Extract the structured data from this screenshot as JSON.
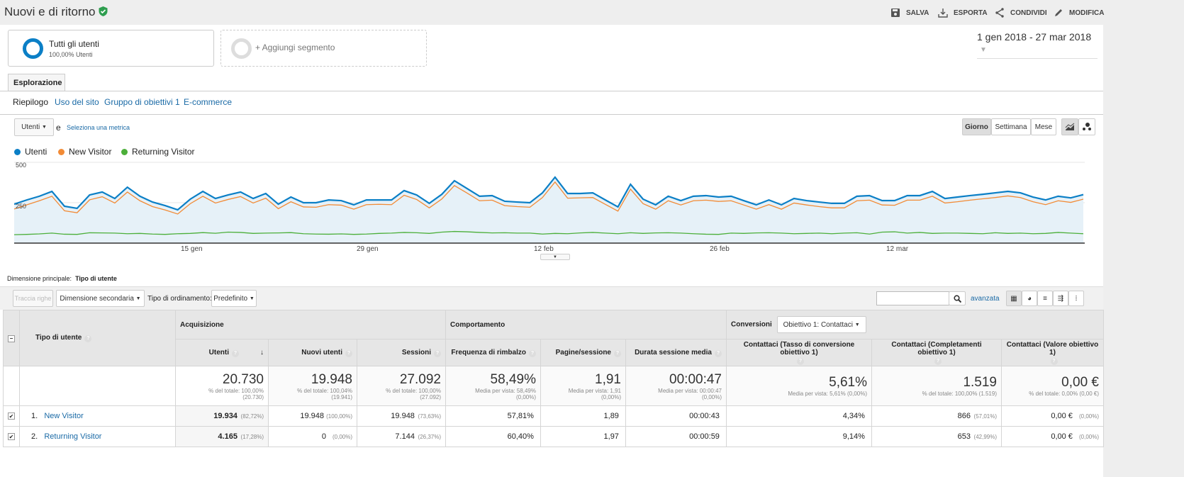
{
  "header": {
    "title": "Nuovi e di ritorno",
    "verified_icon": "shield-check-icon",
    "actions": [
      {
        "label": "SALVA",
        "icon": "save-icon"
      },
      {
        "label": "ESPORTA",
        "icon": "download-icon"
      },
      {
        "label": "CONDIVIDI",
        "icon": "share-icon"
      },
      {
        "label": "MODIFICA",
        "icon": "pencil-icon"
      }
    ]
  },
  "segments": {
    "active": {
      "name": "Tutti gli utenti",
      "detail": "100,00% Utenti"
    },
    "add": "+ Aggiungi segmento"
  },
  "date_range": "1 gen 2018 - 27 mar 2018",
  "tabs": {
    "main": "Esplorazione",
    "sub": [
      "Riepilogo",
      "Uso del sito",
      "Gruppo di obiettivi 1",
      "E-commerce"
    ]
  },
  "metric": {
    "selected": "Utenti",
    "joiner": "e",
    "select_link": "Seleziona una metrica"
  },
  "granularity": [
    "Giorno",
    "Settimana",
    "Mese"
  ],
  "colors": {
    "utenti": "#0b7fc6",
    "new": "#f28b36",
    "returning": "#4caf3a",
    "fill": "#e6f1f8"
  },
  "chart_data": {
    "type": "line",
    "legend_position": "top-left",
    "series": [
      {
        "name": "Utenti",
        "values": [
          241,
          267,
          290,
          320,
          228,
          215,
          298,
          316,
          276,
          346,
          290,
          254,
          232,
          206,
          272,
          320,
          276,
          298,
          316,
          276,
          307,
          241,
          285,
          250,
          250,
          267,
          263,
          237,
          267,
          267,
          267,
          325,
          298,
          246,
          302,
          386,
          338,
          290,
          294,
          259,
          254,
          250,
          311,
          408,
          307,
          307,
          311,
          267,
          224,
          364,
          272,
          237,
          290,
          263,
          290,
          294,
          285,
          290,
          263,
          237,
          267,
          237,
          276,
          263,
          254,
          246,
          246,
          290,
          294,
          263,
          263,
          294,
          294,
          320,
          276,
          285,
          294,
          302,
          311,
          320,
          311,
          285,
          267,
          290,
          280,
          300
        ]
      },
      {
        "name": "New Visitor",
        "values": [
          211,
          237,
          262,
          290,
          200,
          188,
          268,
          287,
          248,
          316,
          262,
          226,
          205,
          180,
          244,
          290,
          248,
          270,
          288,
          248,
          278,
          213,
          256,
          224,
          222,
          238,
          235,
          210,
          238,
          240,
          238,
          296,
          270,
          218,
          273,
          356,
          310,
          262,
          266,
          232,
          226,
          222,
          282,
          378,
          278,
          280,
          282,
          240,
          198,
          334,
          244,
          210,
          262,
          236,
          262,
          266,
          258,
          262,
          236,
          210,
          238,
          210,
          248,
          236,
          226,
          218,
          218,
          262,
          266,
          236,
          234,
          266,
          266,
          290,
          248,
          256,
          266,
          274,
          282,
          292,
          282,
          256,
          238,
          262,
          252,
          272
        ]
      },
      {
        "name": "Returning Visitor",
        "values": [
          52,
          54,
          57,
          62,
          55,
          54,
          64,
          63,
          62,
          58,
          60,
          56,
          54,
          58,
          60,
          65,
          61,
          68,
          66,
          60,
          62,
          63,
          65,
          58,
          56,
          55,
          57,
          54,
          56,
          60,
          62,
          66,
          64,
          60,
          68,
          72,
          70,
          66,
          63,
          64,
          62,
          62,
          56,
          60,
          58,
          63,
          66,
          62,
          58,
          64,
          60,
          63,
          64,
          62,
          58,
          55,
          54,
          62,
          60,
          63,
          64,
          62,
          58,
          60,
          62,
          58,
          62,
          64,
          56,
          68,
          70,
          62,
          66,
          60,
          62,
          62,
          60,
          58,
          64,
          60,
          62,
          58,
          60,
          66,
          62,
          58
        ]
      }
    ],
    "y_ticks": [
      "500",
      "250"
    ],
    "ylim": [
      0,
      500
    ],
    "x_ticks": [
      "15 gen",
      "29 gen",
      "12 feb",
      "26 feb",
      "12 mar"
    ],
    "grid": true
  },
  "dimension": {
    "label": "Dimensione principale:",
    "value": "Tipo di utente"
  },
  "toolbar": {
    "plot_rows": "Traccia righe",
    "secondary": "Dimensione secondaria",
    "sort_label": "Tipo di ordinamento:",
    "sort_value": "Predefinito",
    "advanced": "avanzata"
  },
  "table": {
    "dim_header": "Tipo di utente",
    "groups": {
      "acq": "Acquisizione",
      "beh": "Comportamento",
      "conv": "Conversioni",
      "goal": "Obiettivo 1: Contattaci"
    },
    "columns": [
      "Utenti",
      "Nuovi utenti",
      "Sessioni",
      "Frequenza di rimbalzo",
      "Pagine/sessione",
      "Durata sessione media",
      "Contattaci (Tasso di conversione obiettivo 1)",
      "Contattaci (Completamenti obiettivo 1)",
      "Contattaci (Valore obiettivo 1)"
    ],
    "totals": [
      {
        "v": "20.730",
        "s": "% del totale: 100,00% (20.730)"
      },
      {
        "v": "19.948",
        "s": "% del totale: 100,04% (19.941)"
      },
      {
        "v": "27.092",
        "s": "% del totale: 100,00% (27.092)"
      },
      {
        "v": "58,49%",
        "s": "Media per vista: 58,49% (0,00%)"
      },
      {
        "v": "1,91",
        "s": "Media per vista: 1,91 (0,00%)"
      },
      {
        "v": "00:00:47",
        "s": "Media per vista: 00:00:47 (0,00%)"
      },
      {
        "v": "5,61%",
        "s": "Media per vista: 5,61% (0,00%)"
      },
      {
        "v": "1.519",
        "s": "% del totale: 100,00% (1.519)"
      },
      {
        "v": "0,00 €",
        "s": "% del totale: 0,00% (0,00 €)"
      }
    ],
    "rows": [
      {
        "n": "1.",
        "name": "New Visitor",
        "cells": [
          [
            "19.934",
            "(82,72%)"
          ],
          [
            "19.948",
            "(100,00%)"
          ],
          [
            "19.948",
            "(73,63%)"
          ],
          [
            "57,81%",
            ""
          ],
          [
            "1,89",
            ""
          ],
          [
            "00:00:43",
            ""
          ],
          [
            "4,34%",
            ""
          ],
          [
            "866",
            "(57,01%)"
          ],
          [
            "0,00 €",
            "(0,00%)"
          ]
        ]
      },
      {
        "n": "2.",
        "name": "Returning Visitor",
        "cells": [
          [
            "4.165",
            "(17,28%)"
          ],
          [
            "0",
            "(0,00%)"
          ],
          [
            "7.144",
            "(26,37%)"
          ],
          [
            "60,40%",
            ""
          ],
          [
            "1,97",
            ""
          ],
          [
            "00:00:59",
            ""
          ],
          [
            "9,14%",
            ""
          ],
          [
            "653",
            "(42,99%)"
          ],
          [
            "0,00 €",
            "(0,00%)"
          ]
        ]
      }
    ]
  }
}
